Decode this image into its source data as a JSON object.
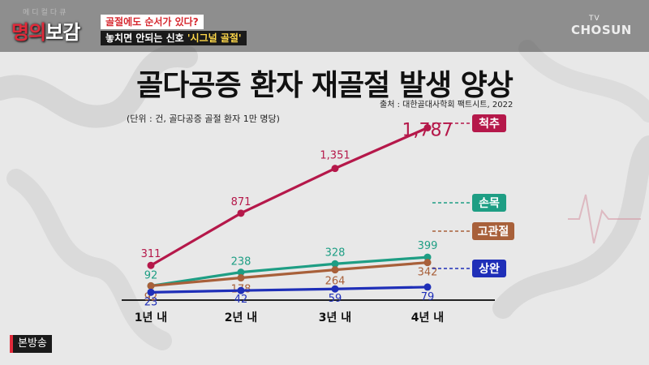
{
  "program": {
    "logo_small": "메디컬다큐",
    "logo_red": "명의",
    "logo_white": "보감"
  },
  "caption": {
    "line1": "골절에도 순서가 있다?",
    "line2_a": "놓치면 안되는 신호 ",
    "line2_b": "'시그널 골절'"
  },
  "channel": {
    "tv": "TV",
    "name": "CHOSUN"
  },
  "episode_tag": "본방송",
  "chart_data": {
    "type": "line",
    "title": "골다공증 환자 재골절 발생 양상",
    "source": "출처 : 대한골대사학회 팩트시트, 2022",
    "unit_note": "(단위 : 건, 골다공증 골절 환자 1만 명당)",
    "categories": [
      "1년 내",
      "2년 내",
      "3년 내",
      "4년 내"
    ],
    "ylim": [
      0,
      1900
    ],
    "grid": false,
    "legend": "end-of-line labels",
    "series": [
      {
        "name": "척추",
        "values": [
          311,
          871,
          1351,
          1787
        ],
        "labels": [
          "311",
          "871",
          "1,351",
          "1,787"
        ],
        "color": "#b5184a"
      },
      {
        "name": "손목",
        "values": [
          92,
          238,
          328,
          399
        ],
        "labels": [
          "92",
          "238",
          "328",
          "399"
        ],
        "color": "#1e9e84"
      },
      {
        "name": "고관절",
        "values": [
          92,
          178,
          264,
          342
        ],
        "labels": [
          "92",
          "178",
          "264",
          "342"
        ],
        "color": "#a8603a"
      },
      {
        "name": "상완",
        "values": [
          23,
          42,
          59,
          79
        ],
        "labels": [
          "23",
          "42",
          "59",
          "79"
        ],
        "color": "#1f2fb8"
      }
    ]
  }
}
